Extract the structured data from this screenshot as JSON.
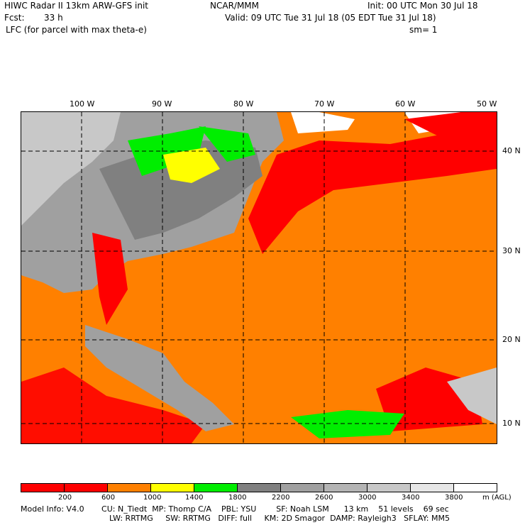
{
  "header": {
    "title": "HIWC Radar II 13km ARW-GFS init",
    "org": "NCAR/MMM",
    "init": "Init: 00 UTC Mon 30 Jul 18",
    "fcst_label": "Fcst:",
    "fcst_value": "33 h",
    "valid": "Valid: 09 UTC Tue 31 Jul 18 (05 EDT Tue 31 Jul 18)",
    "field": "LFC (for parcel with max theta-e)",
    "smoothing": "sm= 1"
  },
  "map": {
    "lon_labels": [
      "100 W",
      "90 W",
      "80 W",
      "70 W",
      "60 W",
      "50 W"
    ],
    "lat_labels": [
      "40 N",
      "30 N",
      "20 N",
      "10 N"
    ]
  },
  "colorbar": {
    "colors": [
      "#ff0000",
      "#ff0000",
      "#ff8000",
      "#ffff00",
      "#00ee00",
      "#808080",
      "#a0a0a0",
      "#b4b4b4",
      "#c8c8c8",
      "#e6e6e6",
      "#ffffff"
    ],
    "labels": [
      "200",
      "600",
      "1000",
      "1400",
      "1800",
      "2200",
      "2600",
      "3000",
      "3400",
      "3800"
    ],
    "units": "m (AGL)"
  },
  "footer": {
    "line1": "Model Info: V4.0       CU: N_Tiedt  MP: Thomp C/A    PBL: YSU        SF: Noah LSM      13 km    51 levels    69 sec",
    "line2": "LW: RRTMG     SW: RRTMG   DIFF: full     KM: 2D Smagor  DAMP: Rayleigh3   SFLAY: MM5"
  }
}
